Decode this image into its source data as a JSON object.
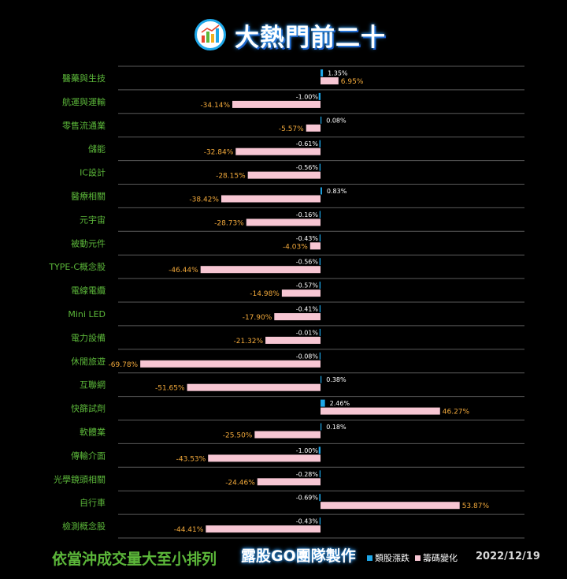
{
  "header": {
    "title": "大熱門前二十",
    "logo_icon": "chart-logo-icon"
  },
  "footer": {
    "note": "依當沖成交量大至小排列",
    "brand": "露股GO團隊製作",
    "date": "2022/12/19"
  },
  "colors": {
    "background": "#000000",
    "category_label": "#5cb83a",
    "price_bar": "#1ea7e8",
    "chip_bar": "#f7c6d3",
    "price_label": "#ffffff",
    "chip_label": "#f2a93b",
    "gridline": "#5a5a5a"
  },
  "chart_data": {
    "type": "bar",
    "orientation": "horizontal",
    "title": "",
    "xlabel": "",
    "ylabel": "",
    "categories": [
      "醫藥與生技",
      "航運與運輸",
      "零售流通業",
      "儲能",
      "IC設計",
      "醫療相關",
      "元宇宙",
      "被動元件",
      "TYPE-C概念股",
      "電線電纜",
      "Mini LED",
      "電力設備",
      "休閒旅遊",
      "互聯網",
      "快篩試劑",
      "軟體業",
      "傳輸介面",
      "光學鏡頭相關",
      "自行車",
      "檢測概念股"
    ],
    "series": [
      {
        "name": "類股漲跌",
        "values": [
          1.35,
          -1.0,
          0.08,
          -0.61,
          -0.56,
          0.83,
          -0.16,
          -0.43,
          -0.56,
          -0.57,
          -0.41,
          -0.01,
          -0.08,
          0.38,
          2.46,
          0.18,
          -1.0,
          -0.28,
          -0.69,
          -0.43
        ]
      },
      {
        "name": "籌碼變化",
        "values": [
          6.95,
          -34.14,
          -5.57,
          -32.84,
          -28.15,
          -38.42,
          -28.73,
          -4.03,
          -46.44,
          -14.98,
          -17.9,
          -21.32,
          -69.78,
          -51.65,
          46.27,
          -25.5,
          -43.53,
          -24.46,
          53.87,
          -44.41
        ]
      }
    ],
    "price_labels": [
      "1.35%",
      "-1.00%",
      "0.08%",
      "-0.61%",
      "-0.56%",
      "0.83%",
      "-0.16%",
      "-0.43%",
      "-0.56%",
      "-0.57%",
      "-0.41%",
      "-0.01%",
      "-0.08%",
      "0.38%",
      "2.46%",
      "0.18%",
      "-1.00%",
      "-0.28%",
      "-0.69%",
      "-0.43%"
    ],
    "chip_labels": [
      "6.95%",
      "-34.14%",
      "-5.57%",
      "-32.84%",
      "-28.15%",
      "-38.42%",
      "-28.73%",
      "-4.03%",
      "-46.44%",
      "-14.98%",
      "-17.90%",
      "-21.32%",
      "-69.78%",
      "-51.65%",
      "46.27%",
      "-25.50%",
      "-43.53%",
      "-24.46%",
      "53.87%",
      "-44.41%"
    ],
    "xlim": [
      -75,
      60
    ],
    "grid": true,
    "legend": "bottom-right"
  }
}
